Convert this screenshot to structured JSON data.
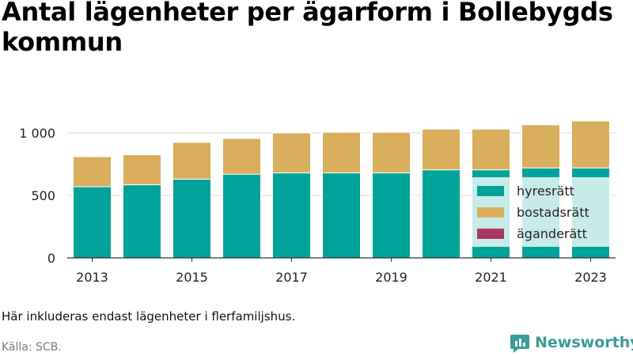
{
  "title": "Antal lägenheter per ägarform i Bollebygds kommun",
  "note": "Här inkluderas endast lägenheter i flerfamiljshus.",
  "source": "Källa: SCB.",
  "brand": {
    "name": "Newsworthy",
    "icon": "bar-chart-logo-icon"
  },
  "chart_data": {
    "type": "bar",
    "stacked": true,
    "categories": [
      "2013",
      "2014",
      "2015",
      "2016",
      "2017",
      "2018",
      "2019",
      "2020",
      "2021",
      "2022",
      "2023"
    ],
    "series": [
      {
        "name": "hyresrätt",
        "color": "#00a39a",
        "values": [
          570,
          585,
          630,
          670,
          680,
          680,
          680,
          705,
          705,
          720,
          720
        ]
      },
      {
        "name": "bostadsrätt",
        "color": "#d9ae5c",
        "values": [
          240,
          240,
          295,
          285,
          320,
          325,
          325,
          325,
          325,
          345,
          375
        ]
      },
      {
        "name": "äganderätt",
        "color": "#a8385d",
        "values": [
          0,
          0,
          0,
          0,
          0,
          0,
          0,
          0,
          0,
          0,
          0
        ]
      }
    ],
    "x_tick_labels": [
      "2013",
      "2015",
      "2017",
      "2019",
      "2021",
      "2023"
    ],
    "y_ticks": [
      0,
      500,
      1000
    ],
    "y_tick_labels": [
      "0",
      "500",
      "1 000"
    ],
    "ylim": [
      0,
      1100
    ],
    "grid": true,
    "legend_position": "bottom-right"
  }
}
